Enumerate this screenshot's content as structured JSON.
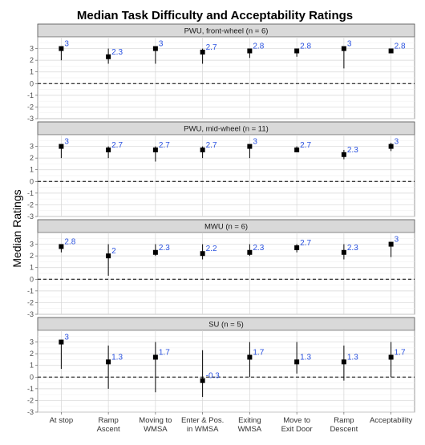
{
  "chart_data": {
    "type": "scatter",
    "title": "Median Task Difficulty and Acceptability Ratings",
    "ylabel": "Median Ratings",
    "xlabel": "",
    "ylim": [
      -3,
      4
    ],
    "yticks": [
      -3,
      -2,
      -1,
      0,
      1,
      2,
      3
    ],
    "reference_line": 0,
    "grid": true,
    "categories": [
      [
        "At stop"
      ],
      [
        "Ramp",
        "Ascent"
      ],
      [
        "Moving to",
        "WMSA"
      ],
      [
        "Enter & Pos.",
        "in WMSA"
      ],
      [
        "Exiting",
        "WMSA"
      ],
      [
        "Move to",
        "Exit Door"
      ],
      [
        "Ramp",
        "Descent"
      ],
      [
        "Acceptability"
      ]
    ],
    "panels": [
      {
        "label": "PWU, front-wheel (n = 6)",
        "values": [
          3,
          2.3,
          3,
          2.7,
          2.8,
          2.8,
          3,
          2.8
        ],
        "labels": [
          "3",
          "2.3",
          "3",
          "2.7",
          "2.8",
          "2.8",
          "3",
          "2.8"
        ],
        "err_low": [
          2,
          1.7,
          1.7,
          1.7,
          2.2,
          2.3,
          1.3,
          2.8
        ],
        "err_high": [
          3,
          3,
          3,
          3,
          3,
          3,
          3,
          3
        ]
      },
      {
        "label": "PWU, mid-wheel (n = 11)",
        "values": [
          3,
          2.7,
          2.7,
          2.7,
          3,
          2.7,
          2.3,
          3
        ],
        "labels": [
          "3",
          "2.7",
          "2.7",
          "2.7",
          "3",
          "2.7",
          "2.3",
          "3"
        ],
        "err_low": [
          2,
          2,
          1.7,
          2,
          2,
          2.7,
          1.9,
          2.6
        ],
        "err_high": [
          3,
          3,
          3,
          3,
          3,
          3,
          2.7,
          3.3
        ]
      },
      {
        "label": "MWU (n = 6)",
        "values": [
          2.8,
          2,
          2.3,
          2.2,
          2.3,
          2.7,
          2.3,
          3
        ],
        "labels": [
          "2.8",
          "2",
          "2.3",
          "2.2",
          "2.3",
          "2.7",
          "2.3",
          "3"
        ],
        "err_low": [
          2.3,
          0.3,
          2,
          1.7,
          2,
          2.3,
          1.7,
          1.9
        ],
        "err_high": [
          3,
          3,
          3,
          3,
          3,
          3,
          3,
          3
        ]
      },
      {
        "label": "SU (n = 5)",
        "values": [
          3,
          1.3,
          1.7,
          -0.3,
          1.7,
          1.3,
          1.3,
          1.7
        ],
        "labels": [
          "3",
          "1.3",
          "1.7",
          "-0.3",
          "1.7",
          "1.3",
          "1.3",
          "1.7"
        ],
        "err_low": [
          0.7,
          -1,
          -1.3,
          -1.7,
          0,
          0.3,
          -0.3,
          0
        ],
        "err_high": [
          3,
          2.7,
          3,
          2.3,
          3,
          3,
          2.7,
          3
        ]
      }
    ]
  }
}
